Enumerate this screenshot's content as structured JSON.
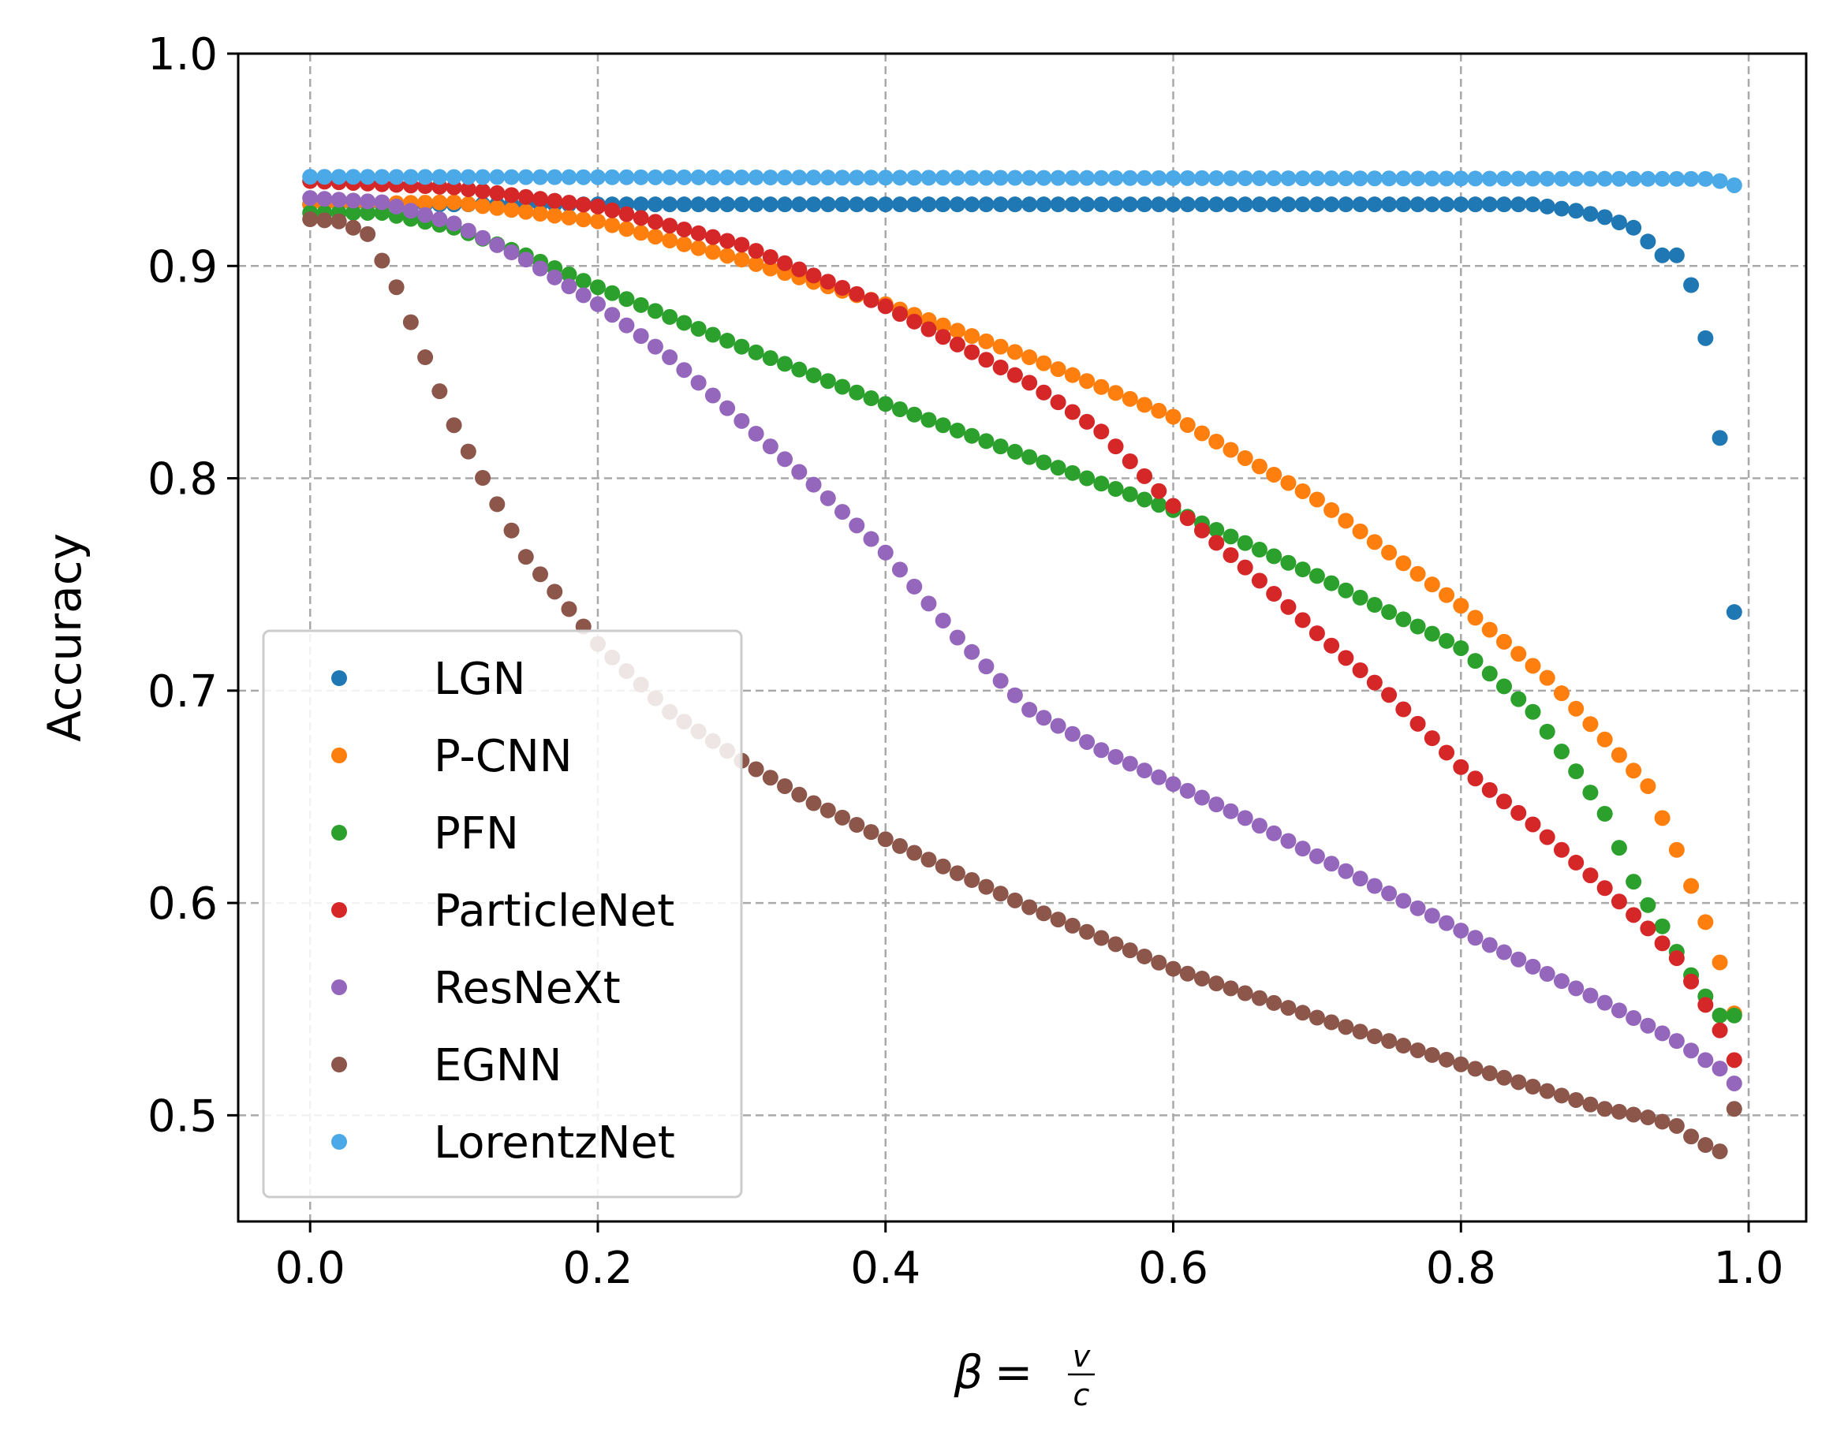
{
  "chart_data": {
    "type": "scatter",
    "title": "",
    "xlabel": "β = v/c",
    "xlabel_parts": {
      "symbol": "β",
      "eq": "=",
      "num": "v",
      "den": "c"
    },
    "ylabel": "Accuracy",
    "xlim": [
      -0.05,
      1.04
    ],
    "ylim": [
      0.45,
      1.0
    ],
    "xticks": [
      "0.0",
      "0.2",
      "0.4",
      "0.6",
      "0.8",
      "1.0"
    ],
    "yticks": [
      "0.5",
      "0.6",
      "0.7",
      "0.8",
      "0.9",
      "1.0"
    ],
    "grid": true,
    "legend_position": "lower-left",
    "x": {
      "start": 0.0,
      "step": 0.01,
      "count": 100
    },
    "series": [
      {
        "name": "LGN",
        "color": "#1f77b4",
        "anchors": [
          [
            0,
            0.929
          ],
          [
            0.85,
            0.929
          ],
          [
            0.88,
            0.926
          ],
          [
            0.9,
            0.923
          ],
          [
            0.92,
            0.918
          ],
          [
            0.94,
            0.905
          ],
          [
            0.95,
            0.905
          ],
          [
            0.96,
            0.891
          ],
          [
            0.97,
            0.866
          ],
          [
            0.98,
            0.819
          ],
          [
            0.99,
            0.737
          ]
        ]
      },
      {
        "name": "P-CNN",
        "color": "#ff7f0e",
        "anchors": [
          [
            0,
            0.929
          ],
          [
            0.1,
            0.93
          ],
          [
            0.2,
            0.921
          ],
          [
            0.3,
            0.903
          ],
          [
            0.4,
            0.882
          ],
          [
            0.5,
            0.857
          ],
          [
            0.6,
            0.829
          ],
          [
            0.7,
            0.79
          ],
          [
            0.8,
            0.74
          ],
          [
            0.86,
            0.706
          ],
          [
            0.9,
            0.677
          ],
          [
            0.93,
            0.655
          ],
          [
            0.95,
            0.625
          ],
          [
            0.96,
            0.608
          ],
          [
            0.97,
            0.591
          ],
          [
            0.98,
            0.572
          ],
          [
            0.99,
            0.548
          ]
        ]
      },
      {
        "name": "PFN",
        "color": "#2ca02c",
        "anchors": [
          [
            0,
            0.925
          ],
          [
            0.05,
            0.925
          ],
          [
            0.1,
            0.918
          ],
          [
            0.15,
            0.905
          ],
          [
            0.2,
            0.89
          ],
          [
            0.3,
            0.862
          ],
          [
            0.4,
            0.835
          ],
          [
            0.5,
            0.81
          ],
          [
            0.6,
            0.785
          ],
          [
            0.7,
            0.754
          ],
          [
            0.8,
            0.72
          ],
          [
            0.85,
            0.69
          ],
          [
            0.88,
            0.662
          ],
          [
            0.9,
            0.642
          ],
          [
            0.92,
            0.61
          ],
          [
            0.93,
            0.599
          ],
          [
            0.94,
            0.589
          ],
          [
            0.95,
            0.577
          ],
          [
            0.96,
            0.566
          ],
          [
            0.97,
            0.556
          ],
          [
            0.98,
            0.547
          ],
          [
            0.99,
            0.547
          ]
        ]
      },
      {
        "name": "ParticleNet",
        "color": "#d62728",
        "anchors": [
          [
            0,
            0.94
          ],
          [
            0.1,
            0.937
          ],
          [
            0.2,
            0.928
          ],
          [
            0.3,
            0.91
          ],
          [
            0.4,
            0.881
          ],
          [
            0.5,
            0.845
          ],
          [
            0.55,
            0.822
          ],
          [
            0.6,
            0.787
          ],
          [
            0.65,
            0.758
          ],
          [
            0.7,
            0.727
          ],
          [
            0.75,
            0.698
          ],
          [
            0.8,
            0.664
          ],
          [
            0.85,
            0.637
          ],
          [
            0.9,
            0.607
          ],
          [
            0.93,
            0.588
          ],
          [
            0.95,
            0.574
          ],
          [
            0.96,
            0.563
          ],
          [
            0.97,
            0.552
          ],
          [
            0.98,
            0.54
          ],
          [
            0.99,
            0.526
          ]
        ]
      },
      {
        "name": "ResNeXt",
        "color": "#9467bd",
        "anchors": [
          [
            0,
            0.932
          ],
          [
            0.05,
            0.93
          ],
          [
            0.1,
            0.92
          ],
          [
            0.15,
            0.903
          ],
          [
            0.2,
            0.882
          ],
          [
            0.25,
            0.857
          ],
          [
            0.3,
            0.827
          ],
          [
            0.35,
            0.797
          ],
          [
            0.4,
            0.765
          ],
          [
            0.45,
            0.725
          ],
          [
            0.5,
            0.691
          ],
          [
            0.55,
            0.672
          ],
          [
            0.6,
            0.656
          ],
          [
            0.65,
            0.64
          ],
          [
            0.7,
            0.622
          ],
          [
            0.8,
            0.587
          ],
          [
            0.9,
            0.553
          ],
          [
            0.95,
            0.535
          ],
          [
            0.97,
            0.526
          ],
          [
            0.98,
            0.522
          ],
          [
            0.99,
            0.515
          ]
        ]
      },
      {
        "name": "EGNN",
        "color": "#8c564b",
        "anchors": [
          [
            0,
            0.922
          ],
          [
            0.02,
            0.921
          ],
          [
            0.04,
            0.915
          ],
          [
            0.06,
            0.89
          ],
          [
            0.08,
            0.857
          ],
          [
            0.1,
            0.825
          ],
          [
            0.15,
            0.763
          ],
          [
            0.2,
            0.722
          ],
          [
            0.25,
            0.69
          ],
          [
            0.3,
            0.667
          ],
          [
            0.35,
            0.647
          ],
          [
            0.4,
            0.63
          ],
          [
            0.5,
            0.598
          ],
          [
            0.6,
            0.569
          ],
          [
            0.7,
            0.546
          ],
          [
            0.8,
            0.524
          ],
          [
            0.9,
            0.503
          ],
          [
            0.93,
            0.499
          ],
          [
            0.95,
            0.495
          ],
          [
            0.96,
            0.49
          ],
          [
            0.97,
            0.486
          ],
          [
            0.98,
            0.483
          ],
          [
            0.99,
            0.503
          ]
        ]
      },
      {
        "name": "LorentzNet",
        "color": "#4aa9e6",
        "anchors": [
          [
            0,
            0.942
          ],
          [
            0.97,
            0.941
          ],
          [
            0.98,
            0.94
          ],
          [
            0.99,
            0.938
          ]
        ]
      }
    ]
  }
}
